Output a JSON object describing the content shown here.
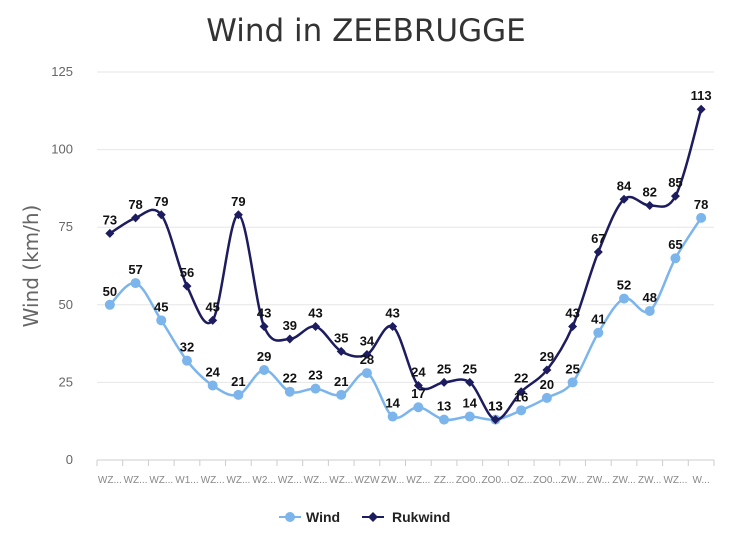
{
  "chart_data": {
    "type": "line",
    "title": "Wind in ZEEBRUGGE",
    "ylabel": "Wind (km/h)",
    "xlabel": "",
    "ylim": [
      0,
      125
    ],
    "yticks": [
      0,
      25,
      50,
      75,
      100,
      125
    ],
    "grid": true,
    "legend_position": "bottom",
    "categories": [
      "WZ...",
      "WZ...",
      "WZ...",
      "W1...",
      "WZ...",
      "WZ...",
      "W2...",
      "WZ...",
      "WZ...",
      "WZ...",
      "WZW",
      "ZW...",
      "WZ...",
      "ZZ...",
      "ZO0...",
      "ZO0...",
      "OZ...",
      "ZO0...",
      "ZW...",
      "ZW...",
      "ZW...",
      "ZW...",
      "WZ...",
      "W..."
    ],
    "series": [
      {
        "name": "Wind",
        "color": "#7cb5ec",
        "marker": "circle",
        "values": [
          50,
          57,
          45,
          32,
          24,
          21,
          29,
          22,
          23,
          21,
          28,
          14,
          17,
          13,
          14,
          13,
          16,
          20,
          25,
          41,
          52,
          48,
          65,
          78
        ]
      },
      {
        "name": "Rukwind",
        "color": "#1c1c5e",
        "marker": "diamond",
        "values": [
          73,
          78,
          79,
          56,
          45,
          79,
          43,
          39,
          43,
          35,
          34,
          43,
          24,
          25,
          25,
          13,
          22,
          29,
          43,
          67,
          84,
          82,
          85,
          113
        ]
      }
    ]
  }
}
